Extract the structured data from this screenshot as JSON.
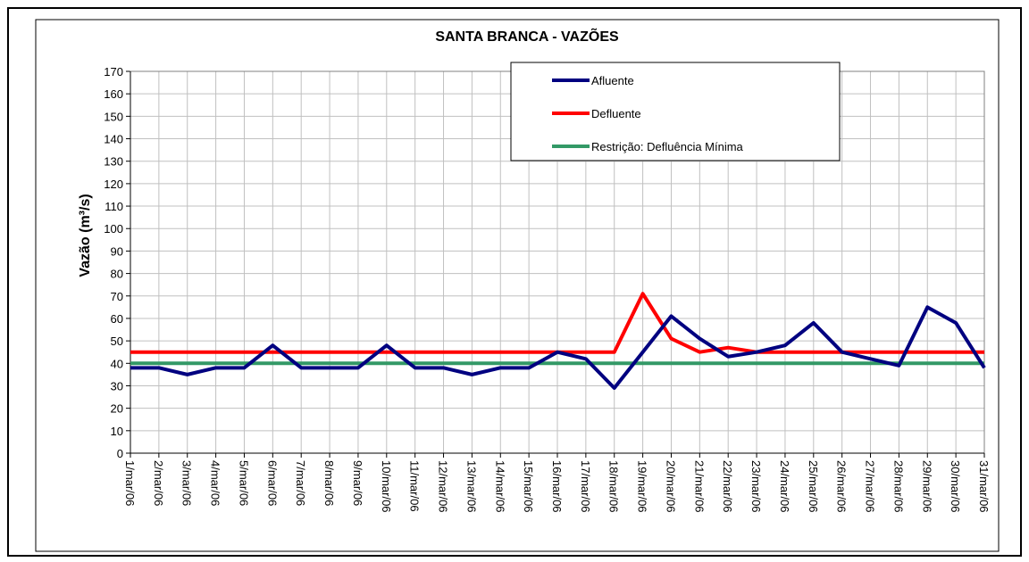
{
  "chart_data": {
    "type": "line",
    "title": "SANTA BRANCA - VAZÕES",
    "y_label": "Vazão (m³/s)",
    "categories": [
      "1/mar/06",
      "2/mar/06",
      "3/mar/06",
      "4/mar/06",
      "5/mar/06",
      "6/mar/06",
      "7/mar/06",
      "8/mar/06",
      "9/mar/06",
      "10/mar/06",
      "11/mar/06",
      "12/mar/06",
      "13/mar/06",
      "14/mar/06",
      "15/mar/06",
      "16/mar/06",
      "17/mar/06",
      "18/mar/06",
      "19/mar/06",
      "20/mar/06",
      "21/mar/06",
      "22/mar/06",
      "23/mar/06",
      "24/mar/06",
      "25/mar/06",
      "26/mar/06",
      "27/mar/06",
      "28/mar/06",
      "29/mar/06",
      "30/mar/06",
      "31/mar/06"
    ],
    "series": [
      {
        "name": "Afluente",
        "color": "#000080",
        "values": [
          38,
          38,
          35,
          38,
          38,
          48,
          38,
          38,
          38,
          48,
          38,
          38,
          35,
          38,
          38,
          45,
          42,
          29,
          45,
          61,
          51,
          43,
          45,
          48,
          58,
          45,
          42,
          39,
          65,
          58,
          38
        ]
      },
      {
        "name": "Defluente",
        "color": "#ff0000",
        "values": [
          45,
          45,
          45,
          45,
          45,
          45,
          45,
          45,
          45,
          45,
          45,
          45,
          45,
          45,
          45,
          45,
          45,
          45,
          71,
          51,
          45,
          47,
          45,
          45,
          45,
          45,
          45,
          45,
          45,
          45,
          45
        ]
      },
      {
        "name": "Restrição: Defluência Mínima",
        "color": "#339966",
        "values": [
          40,
          40,
          40,
          40,
          40,
          40,
          40,
          40,
          40,
          40,
          40,
          40,
          40,
          40,
          40,
          40,
          40,
          40,
          40,
          40,
          40,
          40,
          40,
          40,
          40,
          40,
          40,
          40,
          40,
          40,
          40
        ]
      }
    ],
    "ylim": [
      0,
      170
    ],
    "yticks": [
      0,
      10,
      20,
      30,
      40,
      50,
      60,
      70,
      80,
      90,
      100,
      110,
      120,
      130,
      140,
      150,
      160,
      170
    ],
    "grid": true
  }
}
